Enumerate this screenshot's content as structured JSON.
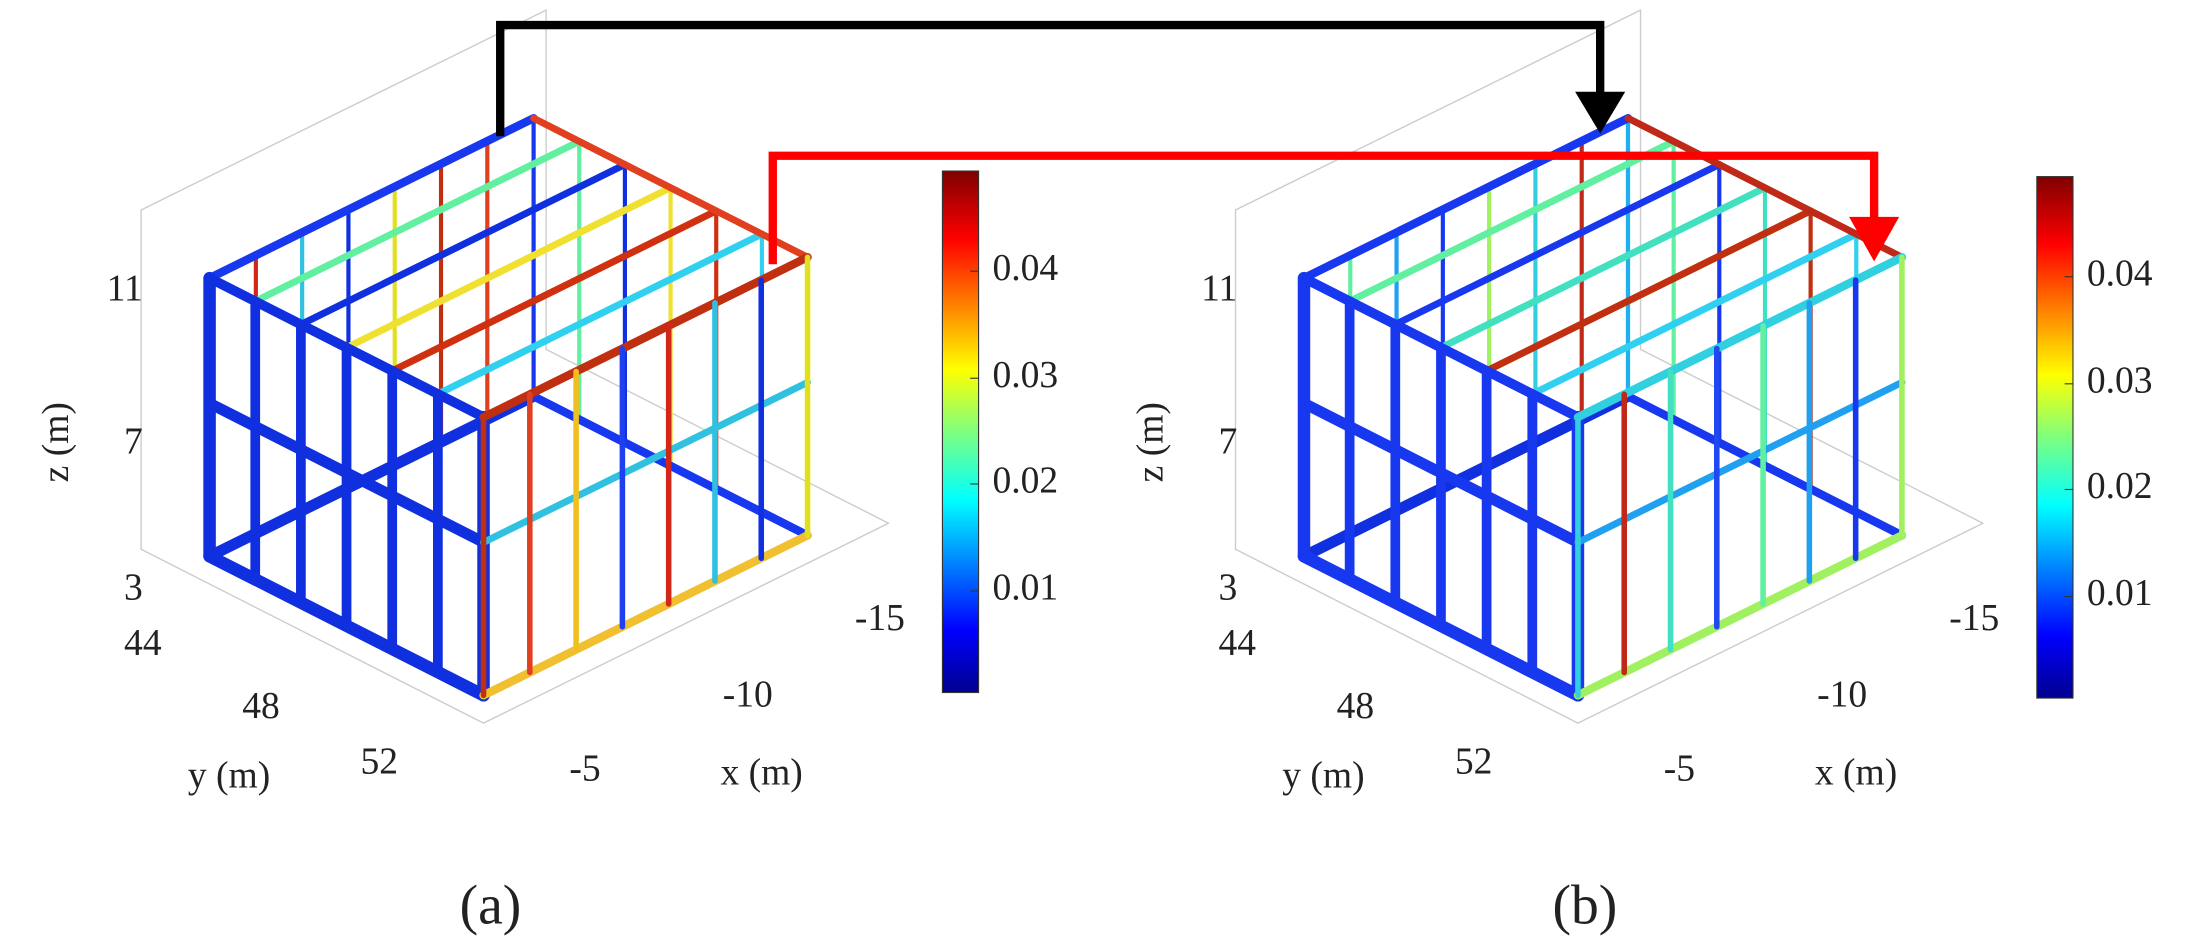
{
  "panels": [
    {
      "label": "(a)",
      "z_axis": {
        "label": "z (m)",
        "ticks": [
          "3",
          "7",
          "11"
        ]
      },
      "y_axis": {
        "label": "y (m)",
        "ticks": [
          "44",
          "48",
          "52"
        ]
      },
      "x_axis": {
        "label": "x (m)",
        "ticks": [
          "-5",
          "-10",
          "-15"
        ]
      },
      "colorbar": {
        "ticks": [
          "0.01",
          "0.02",
          "0.03",
          "0.04"
        ]
      }
    },
    {
      "label": "(b)",
      "z_axis": {
        "label": "z (m)",
        "ticks": [
          "3",
          "7",
          "11"
        ]
      },
      "y_axis": {
        "label": "y (m)",
        "ticks": [
          "44",
          "48",
          "52"
        ]
      },
      "x_axis": {
        "label": "x (m)",
        "ticks": [
          "-5",
          "-10",
          "-15"
        ]
      },
      "colorbar": {
        "ticks": [
          "0.01",
          "0.02",
          "0.03",
          "0.04"
        ]
      }
    }
  ]
}
